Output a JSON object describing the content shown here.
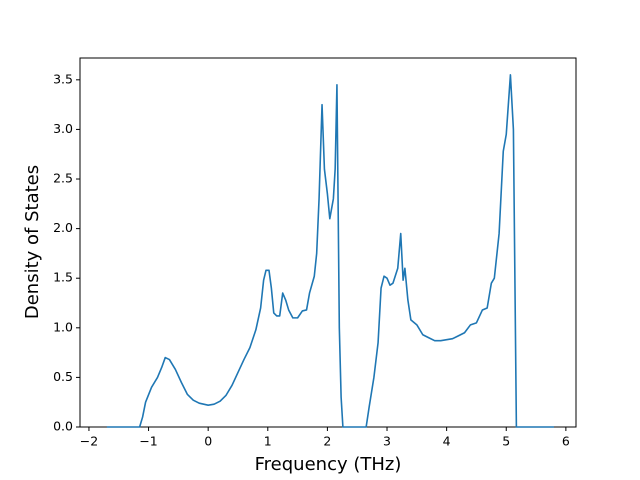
{
  "chart_data": {
    "type": "line",
    "x_label": "Frequency (THz)",
    "y_label": "Density of States",
    "xlim": [
      -2.15,
      6.17
    ],
    "ylim": [
      0,
      3.72
    ],
    "xticks": [
      {
        "value": -2,
        "label": "−2"
      },
      {
        "value": -1,
        "label": "−1"
      },
      0,
      1,
      2,
      3,
      4,
      5,
      6
    ],
    "yticks": [
      {
        "value": 0,
        "label": "0.0"
      },
      {
        "value": 0.5,
        "label": "0.5"
      },
      {
        "value": 1,
        "label": "1.0"
      },
      {
        "value": 1.5,
        "label": "1.5"
      },
      {
        "value": 2,
        "label": "2.0"
      },
      {
        "value": 2.5,
        "label": "2.5"
      },
      {
        "value": 3,
        "label": "3.0"
      },
      {
        "value": 3.5,
        "label": "3.5"
      }
    ],
    "series": [
      {
        "color": "#1f77b4",
        "x": [
          -1.7,
          -1.15,
          -1.1,
          -1.05,
          -0.95,
          -0.85,
          -0.78,
          -0.72,
          -0.65,
          -0.55,
          -0.45,
          -0.35,
          -0.25,
          -0.15,
          0,
          0.1,
          0.2,
          0.3,
          0.4,
          0.5,
          0.6,
          0.7,
          0.8,
          0.88,
          0.93,
          0.97,
          1.02,
          1.06,
          1.1,
          1.15,
          1.2,
          1.25,
          1.3,
          1.35,
          1.42,
          1.5,
          1.58,
          1.65,
          1.7,
          1.78,
          1.82,
          1.86,
          1.91,
          1.95,
          2.0,
          2.04,
          2.1,
          2.13,
          2.16,
          2.2,
          2.23,
          2.26,
          2.65,
          2.7,
          2.78,
          2.85,
          2.9,
          2.95,
          3.0,
          3.05,
          3.1,
          3.18,
          3.23,
          3.27,
          3.3,
          3.35,
          3.4,
          3.5,
          3.6,
          3.7,
          3.8,
          3.9,
          4.0,
          4.1,
          4.2,
          4.3,
          4.4,
          4.5,
          4.6,
          4.68,
          4.75,
          4.8,
          4.88,
          4.95,
          5.0,
          5.07,
          5.12,
          5.17,
          5.8
        ],
        "values": [
          0,
          0,
          0.1,
          0.25,
          0.4,
          0.5,
          0.6,
          0.7,
          0.68,
          0.58,
          0.45,
          0.33,
          0.27,
          0.24,
          0.22,
          0.23,
          0.26,
          0.32,
          0.42,
          0.55,
          0.68,
          0.8,
          0.98,
          1.2,
          1.48,
          1.58,
          1.58,
          1.4,
          1.15,
          1.12,
          1.12,
          1.35,
          1.28,
          1.18,
          1.1,
          1.1,
          1.17,
          1.18,
          1.35,
          1.52,
          1.75,
          2.3,
          3.25,
          2.6,
          2.35,
          2.1,
          2.3,
          2.6,
          3.45,
          1.0,
          0.3,
          0,
          0,
          0.2,
          0.5,
          0.85,
          1.4,
          1.52,
          1.5,
          1.43,
          1.45,
          1.6,
          1.95,
          1.48,
          1.6,
          1.28,
          1.08,
          1.03,
          0.93,
          0.9,
          0.87,
          0.87,
          0.88,
          0.89,
          0.92,
          0.95,
          1.03,
          1.05,
          1.18,
          1.2,
          1.45,
          1.5,
          1.95,
          2.78,
          2.95,
          3.55,
          3.0,
          0,
          0
        ]
      }
    ]
  }
}
